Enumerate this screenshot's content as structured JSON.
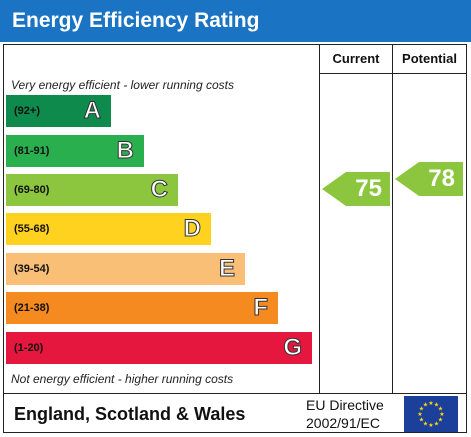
{
  "title": "Energy Efficiency Rating",
  "columns": {
    "current": "Current",
    "potential": "Potential"
  },
  "notes": {
    "top": "Very energy efficient - lower running costs",
    "bottom": "Not energy efficient - higher running costs"
  },
  "bands": [
    {
      "range": "(92+)",
      "letter": "A",
      "color": "#0e8a4c"
    },
    {
      "range": "(81-91)",
      "letter": "B",
      "color": "#2aaf4f"
    },
    {
      "range": "(69-80)",
      "letter": "C",
      "color": "#8cc63f"
    },
    {
      "range": "(55-68)",
      "letter": "D",
      "color": "#ffd21f"
    },
    {
      "range": "(39-54)",
      "letter": "E",
      "color": "#f9bf77"
    },
    {
      "range": "(21-38)",
      "letter": "F",
      "color": "#f58a20"
    },
    {
      "range": "(1-20)",
      "letter": "G",
      "color": "#e5173f"
    }
  ],
  "ratings": {
    "current": {
      "value": "75",
      "band": "C",
      "color": "#8cc63f"
    },
    "potential": {
      "value": "78",
      "band": "C",
      "color": "#8cc63f"
    }
  },
  "footer": {
    "region": "England, Scotland & Wales",
    "directive_line1": "EU Directive",
    "directive_line2": "2002/91/EC",
    "flag_color": "#1c3f9c",
    "star_color": "#ffdd00"
  }
}
